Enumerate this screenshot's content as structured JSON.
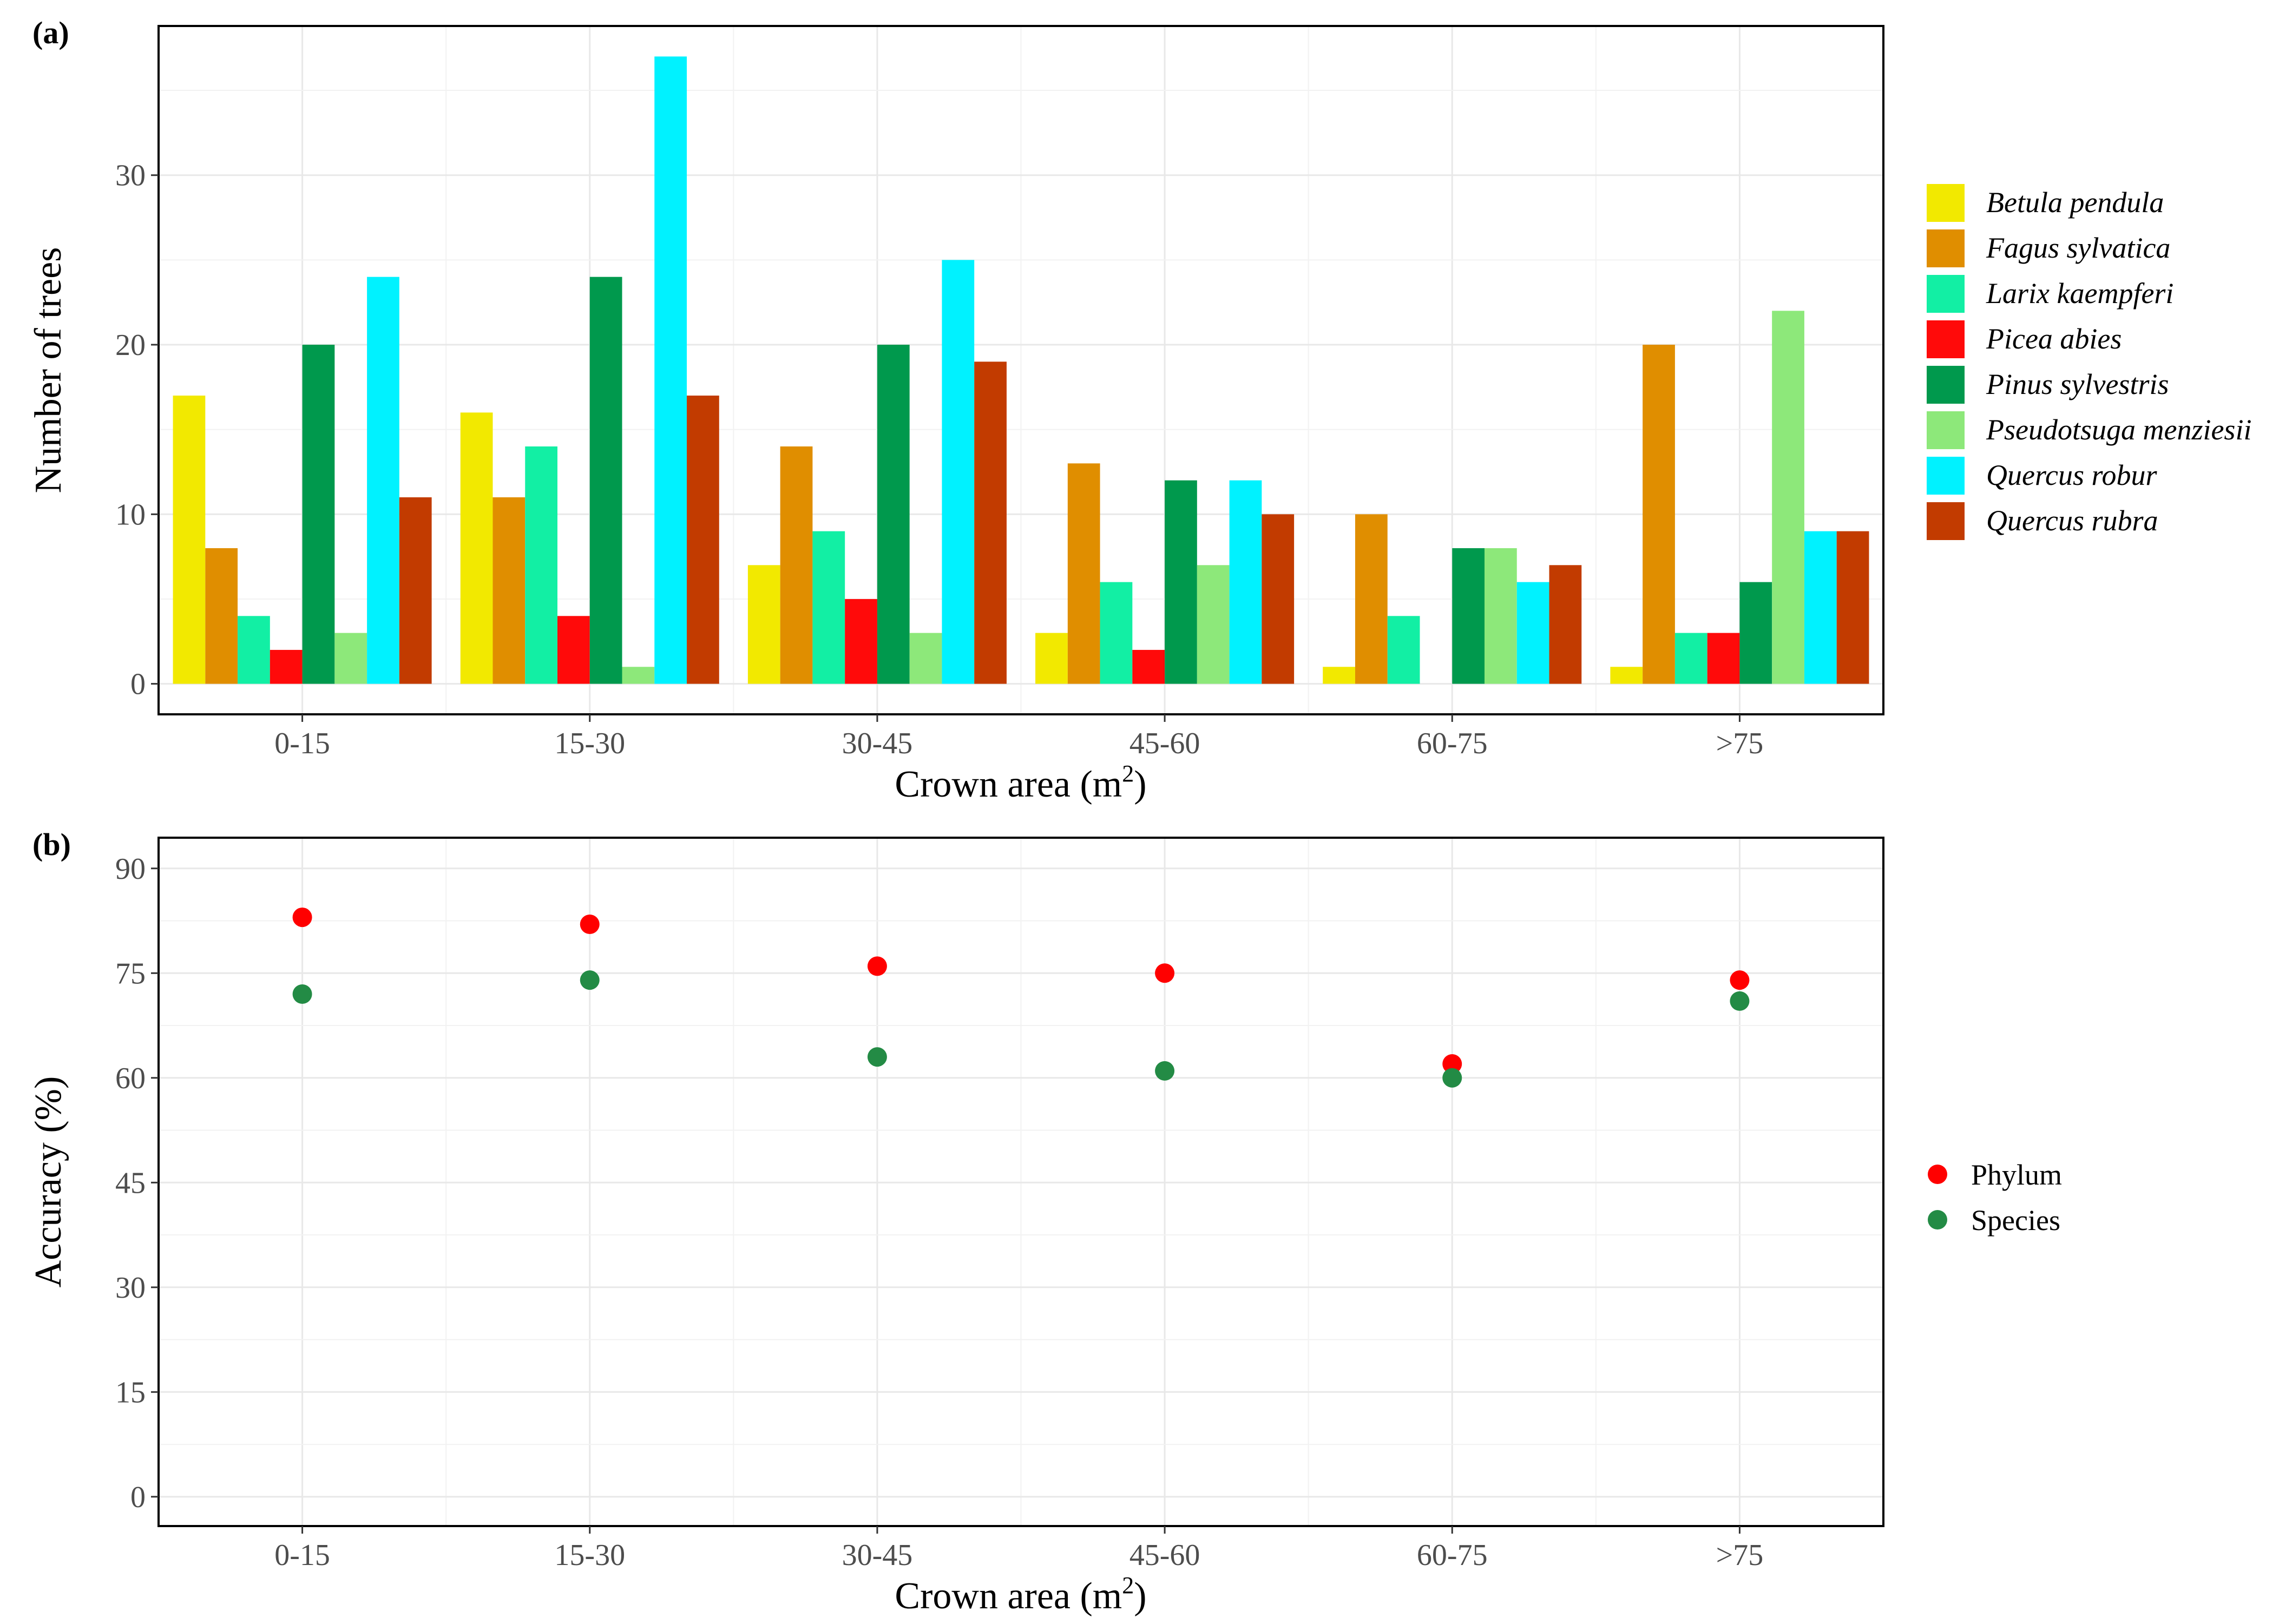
{
  "chart_data": [
    {
      "type": "bar",
      "panel_label": "(a)",
      "categories": [
        "0-15",
        "15-30",
        "30-45",
        "45-60",
        "60-75",
        ">75"
      ],
      "series": [
        {
          "name": "Betula pendula",
          "color": "#F2E900",
          "values": [
            17,
            16,
            7,
            3,
            1,
            1
          ]
        },
        {
          "name": "Fagus sylvatica",
          "color": "#E08E00",
          "values": [
            8,
            11,
            14,
            13,
            10,
            20
          ]
        },
        {
          "name": "Larix kaempferi",
          "color": "#12EFA4",
          "values": [
            4,
            14,
            9,
            6,
            4,
            3
          ]
        },
        {
          "name": "Picea abies",
          "color": "#FF0A0A",
          "values": [
            2,
            4,
            5,
            2,
            0,
            3
          ]
        },
        {
          "name": "Pinus sylvestris",
          "color": "#00994D",
          "values": [
            20,
            24,
            20,
            12,
            8,
            6
          ]
        },
        {
          "name": "Pseudotsuga menziesii",
          "color": "#8DE87A",
          "values": [
            3,
            1,
            3,
            7,
            8,
            22
          ]
        },
        {
          "name": "Quercus robur",
          "color": "#00F2FF",
          "values": [
            24,
            37,
            25,
            12,
            6,
            9
          ]
        },
        {
          "name": "Quercus rubra",
          "color": "#C23B00",
          "values": [
            11,
            17,
            19,
            10,
            7,
            9
          ]
        }
      ],
      "ylabel": "Number of trees",
      "xlabel": "Crown area  (m",
      "xlabel_sup": "2",
      "xlabel_close": ")",
      "ylim": [
        -1.8,
        38.8
      ],
      "yticks": [
        0,
        10,
        20,
        30
      ],
      "ytick_labels": [
        "0",
        "10",
        "20",
        "30"
      ],
      "legend_position": "right",
      "grid": true
    },
    {
      "type": "scatter",
      "panel_label": "(b)",
      "categories": [
        "0-15",
        "15-30",
        "30-45",
        "45-60",
        "60-75",
        ">75"
      ],
      "series": [
        {
          "name": "Phylum",
          "color": "#FF0000",
          "values": [
            83,
            82,
            76,
            75,
            62,
            74
          ]
        },
        {
          "name": "Species",
          "color": "#238B45",
          "values": [
            72,
            74,
            63,
            61,
            60,
            71
          ]
        }
      ],
      "ylabel": "Accuracy (%)",
      "xlabel": "Crown area  (m",
      "xlabel_sup": "2",
      "xlabel_close": ")",
      "ylim": [
        -4.2,
        94.4
      ],
      "yticks": [
        0,
        15,
        30,
        45,
        60,
        75,
        90
      ],
      "ytick_labels": [
        "0",
        "15",
        "30",
        "45",
        "60",
        "75",
        "90"
      ],
      "legend_position": "right",
      "grid": true
    }
  ]
}
